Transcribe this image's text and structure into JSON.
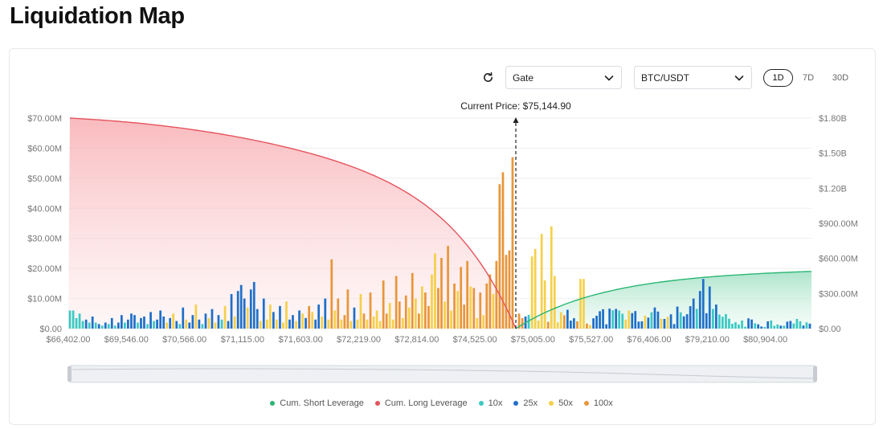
{
  "page": {
    "title": "Liquidation Map"
  },
  "controls": {
    "exchange": "Gate",
    "pair": "BTC/USDT",
    "ranges": [
      "1D",
      "7D",
      "30D"
    ],
    "active_range": "1D"
  },
  "colors": {
    "long": "#e5545d",
    "short": "#2bb673",
    "x10": "#3cc9c4",
    "x25": "#1f6fc9",
    "x50": "#f5d04a",
    "x100": "#e8963a",
    "grid": "#eeeeee",
    "axis_text": "#777777"
  },
  "chart_data": {
    "type": "bar",
    "title": "",
    "annotation": "Current Price: $75,144.90",
    "current_price": 75144.9,
    "x_tick_labels": [
      "$66,402.00",
      "$69,546.00",
      "$70,566.00",
      "$71,115.00",
      "$71,603.00",
      "$72,219.00",
      "$72,814.00",
      "$74,525.00",
      "$75,005.00",
      "$75,527.00",
      "$76,406.00",
      "$79,210.00",
      "$80,904.00"
    ],
    "y_left": {
      "ticks": [
        "$0.00",
        "$10.00M",
        "$20.00M",
        "$30.00M",
        "$40.00M",
        "$50.00M",
        "$60.00M",
        "$70.00M"
      ],
      "range": [
        0,
        70000000
      ]
    },
    "y_right": {
      "ticks": [
        "$0.00",
        "$300.00M",
        "$600.00M",
        "$900.00M",
        "$1.20B",
        "$1.50B",
        "$1.80B"
      ],
      "range": [
        0,
        1800000000
      ]
    },
    "legend": [
      "Cum. Short Leverage",
      "Cum. Long Leverage",
      "10x",
      "25x",
      "50x",
      "100x"
    ],
    "legend_position": "bottom",
    "bar_count": 230,
    "current_price_index": 138,
    "bars": [
      {
        "i": 0,
        "v": 6.0,
        "lev": "10x"
      },
      {
        "i": 1,
        "v": 6.0,
        "lev": "10x"
      },
      {
        "i": 2,
        "v": 3.5,
        "lev": "10x"
      },
      {
        "i": 3,
        "v": 5.0,
        "lev": "10x"
      },
      {
        "i": 4,
        "v": 2.5,
        "lev": "10x"
      },
      {
        "i": 5,
        "v": 3.0,
        "lev": "25x"
      },
      {
        "i": 6,
        "v": 2.0,
        "lev": "10x"
      },
      {
        "i": 7,
        "v": 4.0,
        "lev": "25x"
      },
      {
        "i": 8,
        "v": 2.0,
        "lev": "10x"
      },
      {
        "i": 9,
        "v": 1.5,
        "lev": "25x"
      },
      {
        "i": 10,
        "v": 1.0,
        "lev": "10x"
      },
      {
        "i": 11,
        "v": 2.0,
        "lev": "25x"
      },
      {
        "i": 12,
        "v": 1.5,
        "lev": "10x"
      },
      {
        "i": 13,
        "v": 3.5,
        "lev": "25x"
      },
      {
        "i": 14,
        "v": 1.0,
        "lev": "10x"
      },
      {
        "i": 15,
        "v": 2.0,
        "lev": "25x"
      },
      {
        "i": 16,
        "v": 4.5,
        "lev": "25x"
      },
      {
        "i": 17,
        "v": 2.0,
        "lev": "10x"
      },
      {
        "i": 18,
        "v": 3.0,
        "lev": "25x"
      },
      {
        "i": 19,
        "v": 5.0,
        "lev": "25x"
      },
      {
        "i": 20,
        "v": 4.5,
        "lev": "25x"
      },
      {
        "i": 21,
        "v": 2.0,
        "lev": "10x"
      },
      {
        "i": 22,
        "v": 3.5,
        "lev": "25x"
      },
      {
        "i": 23,
        "v": 4.0,
        "lev": "25x"
      },
      {
        "i": 24,
        "v": 1.5,
        "lev": "10x"
      },
      {
        "i": 25,
        "v": 5.5,
        "lev": "25x"
      },
      {
        "i": 26,
        "v": 2.5,
        "lev": "10x"
      },
      {
        "i": 27,
        "v": 3.0,
        "lev": "25x"
      },
      {
        "i": 28,
        "v": 6.0,
        "lev": "25x"
      },
      {
        "i": 29,
        "v": 4.0,
        "lev": "25x"
      },
      {
        "i": 30,
        "v": 2.0,
        "lev": "50x"
      },
      {
        "i": 31,
        "v": 3.5,
        "lev": "25x"
      },
      {
        "i": 32,
        "v": 5.0,
        "lev": "50x"
      },
      {
        "i": 33,
        "v": 2.5,
        "lev": "25x"
      },
      {
        "i": 34,
        "v": 1.5,
        "lev": "10x"
      },
      {
        "i": 35,
        "v": 7.0,
        "lev": "25x"
      },
      {
        "i": 36,
        "v": 3.0,
        "lev": "50x"
      },
      {
        "i": 37,
        "v": 2.0,
        "lev": "25x"
      },
      {
        "i": 38,
        "v": 4.5,
        "lev": "25x"
      },
      {
        "i": 39,
        "v": 8.0,
        "lev": "50x"
      },
      {
        "i": 40,
        "v": 3.0,
        "lev": "25x"
      },
      {
        "i": 41,
        "v": 1.5,
        "lev": "10x"
      },
      {
        "i": 42,
        "v": 5.0,
        "lev": "25x"
      },
      {
        "i": 43,
        "v": 3.5,
        "lev": "50x"
      },
      {
        "i": 44,
        "v": 6.5,
        "lev": "25x"
      },
      {
        "i": 45,
        "v": 2.0,
        "lev": "50x"
      },
      {
        "i": 46,
        "v": 4.5,
        "lev": "25x"
      },
      {
        "i": 47,
        "v": 3.0,
        "lev": "10x"
      },
      {
        "i": 48,
        "v": 7.5,
        "lev": "50x"
      },
      {
        "i": 49,
        "v": 2.5,
        "lev": "25x"
      },
      {
        "i": 50,
        "v": 11.5,
        "lev": "25x"
      },
      {
        "i": 51,
        "v": 4.0,
        "lev": "50x"
      },
      {
        "i": 52,
        "v": 12.5,
        "lev": "25x"
      },
      {
        "i": 53,
        "v": 14.5,
        "lev": "25x"
      },
      {
        "i": 54,
        "v": 10.0,
        "lev": "25x"
      },
      {
        "i": 55,
        "v": 7.0,
        "lev": "50x"
      },
      {
        "i": 56,
        "v": 13.0,
        "lev": "25x"
      },
      {
        "i": 57,
        "v": 15.5,
        "lev": "25x"
      },
      {
        "i": 58,
        "v": 6.5,
        "lev": "25x"
      },
      {
        "i": 59,
        "v": 2.5,
        "lev": "50x"
      },
      {
        "i": 60,
        "v": 10.0,
        "lev": "25x"
      },
      {
        "i": 61,
        "v": 3.0,
        "lev": "50x"
      },
      {
        "i": 62,
        "v": 8.0,
        "lev": "50x"
      },
      {
        "i": 63,
        "v": 5.5,
        "lev": "25x"
      },
      {
        "i": 64,
        "v": 3.0,
        "lev": "50x"
      },
      {
        "i": 65,
        "v": 7.5,
        "lev": "25x"
      },
      {
        "i": 66,
        "v": 2.0,
        "lev": "50x"
      },
      {
        "i": 67,
        "v": 9.0,
        "lev": "50x"
      },
      {
        "i": 68,
        "v": 3.0,
        "lev": "25x"
      },
      {
        "i": 69,
        "v": 4.5,
        "lev": "25x"
      },
      {
        "i": 70,
        "v": 2.5,
        "lev": "50x"
      },
      {
        "i": 71,
        "v": 6.0,
        "lev": "25x"
      },
      {
        "i": 72,
        "v": 5.0,
        "lev": "50x"
      },
      {
        "i": 73,
        "v": 3.5,
        "lev": "25x"
      },
      {
        "i": 74,
        "v": 7.5,
        "lev": "100x"
      },
      {
        "i": 75,
        "v": 5.5,
        "lev": "50x"
      },
      {
        "i": 76,
        "v": 3.0,
        "lev": "25x"
      },
      {
        "i": 77,
        "v": 8.0,
        "lev": "25x"
      },
      {
        "i": 78,
        "v": 4.0,
        "lev": "50x"
      },
      {
        "i": 79,
        "v": 10.0,
        "lev": "25x"
      },
      {
        "i": 80,
        "v": 3.0,
        "lev": "50x"
      },
      {
        "i": 81,
        "v": 23.0,
        "lev": "100x"
      },
      {
        "i": 82,
        "v": 6.0,
        "lev": "50x"
      },
      {
        "i": 83,
        "v": 10.0,
        "lev": "100x"
      },
      {
        "i": 84,
        "v": 3.0,
        "lev": "50x"
      },
      {
        "i": 85,
        "v": 4.5,
        "lev": "100x"
      },
      {
        "i": 86,
        "v": 13.0,
        "lev": "100x"
      },
      {
        "i": 87,
        "v": 2.5,
        "lev": "50x"
      },
      {
        "i": 88,
        "v": 7.0,
        "lev": "25x"
      },
      {
        "i": 89,
        "v": 3.0,
        "lev": "50x"
      },
      {
        "i": 90,
        "v": 11.5,
        "lev": "50x"
      },
      {
        "i": 91,
        "v": 5.0,
        "lev": "100x"
      },
      {
        "i": 92,
        "v": 3.0,
        "lev": "50x"
      },
      {
        "i": 93,
        "v": 12.0,
        "lev": "100x"
      },
      {
        "i": 94,
        "v": 4.0,
        "lev": "50x"
      },
      {
        "i": 95,
        "v": 6.0,
        "lev": "50x"
      },
      {
        "i": 96,
        "v": 2.5,
        "lev": "50x"
      },
      {
        "i": 97,
        "v": 16.0,
        "lev": "100x"
      },
      {
        "i": 98,
        "v": 5.0,
        "lev": "100x"
      },
      {
        "i": 99,
        "v": 8.5,
        "lev": "50x"
      },
      {
        "i": 100,
        "v": 3.0,
        "lev": "50x"
      },
      {
        "i": 101,
        "v": 17.5,
        "lev": "100x"
      },
      {
        "i": 102,
        "v": 9.0,
        "lev": "100x"
      },
      {
        "i": 103,
        "v": 3.5,
        "lev": "50x"
      },
      {
        "i": 104,
        "v": 11.0,
        "lev": "100x"
      },
      {
        "i": 105,
        "v": 7.0,
        "lev": "50x"
      },
      {
        "i": 106,
        "v": 18.5,
        "lev": "100x"
      },
      {
        "i": 107,
        "v": 10.0,
        "lev": "50x"
      },
      {
        "i": 108,
        "v": 5.0,
        "lev": "100x"
      },
      {
        "i": 109,
        "v": 14.0,
        "lev": "50x"
      },
      {
        "i": 110,
        "v": 12.0,
        "lev": "100x"
      },
      {
        "i": 111,
        "v": 7.5,
        "lev": "100x"
      },
      {
        "i": 112,
        "v": 18.0,
        "lev": "50x"
      },
      {
        "i": 113,
        "v": 25.0,
        "lev": "50x"
      },
      {
        "i": 114,
        "v": 13.5,
        "lev": "100x"
      },
      {
        "i": 115,
        "v": 23.5,
        "lev": "100x"
      },
      {
        "i": 116,
        "v": 9.0,
        "lev": "50x"
      },
      {
        "i": 117,
        "v": 27.5,
        "lev": "100x"
      },
      {
        "i": 118,
        "v": 6.0,
        "lev": "50x"
      },
      {
        "i": 119,
        "v": 15.0,
        "lev": "100x"
      },
      {
        "i": 120,
        "v": 12.5,
        "lev": "50x"
      },
      {
        "i": 121,
        "v": 20.5,
        "lev": "100x"
      },
      {
        "i": 122,
        "v": 8.0,
        "lev": "100x"
      },
      {
        "i": 123,
        "v": 22.5,
        "lev": "100x"
      },
      {
        "i": 124,
        "v": 14.0,
        "lev": "50x"
      },
      {
        "i": 125,
        "v": 13.5,
        "lev": "100x"
      },
      {
        "i": 126,
        "v": 3.5,
        "lev": "50x"
      },
      {
        "i": 127,
        "v": 12.0,
        "lev": "100x"
      },
      {
        "i": 128,
        "v": 4.5,
        "lev": "50x"
      },
      {
        "i": 129,
        "v": 15.0,
        "lev": "100x"
      },
      {
        "i": 130,
        "v": 18.0,
        "lev": "100x"
      },
      {
        "i": 131,
        "v": 11.5,
        "lev": "50x"
      },
      {
        "i": 132,
        "v": 22.5,
        "lev": "100x"
      },
      {
        "i": 133,
        "v": 48.0,
        "lev": "100x"
      },
      {
        "i": 134,
        "v": 52.0,
        "lev": "100x"
      },
      {
        "i": 135,
        "v": 24.5,
        "lev": "100x"
      },
      {
        "i": 136,
        "v": 26.0,
        "lev": "100x"
      },
      {
        "i": 137,
        "v": 57.0,
        "lev": "100x"
      }
    ]
  }
}
